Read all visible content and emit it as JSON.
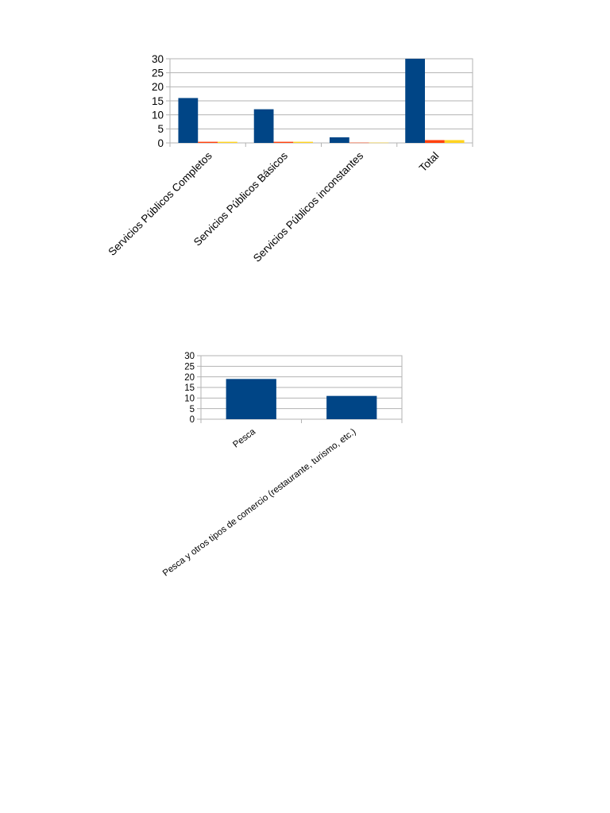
{
  "chart_data": [
    {
      "type": "bar",
      "categories": [
        "Servicios Públicos Completos",
        "Servicios Públicos Básicos",
        "Servicios Públicos inconstantes",
        "Total"
      ],
      "series": [
        {
          "values": [
            16,
            12,
            2,
            30
          ],
          "color": "#004586"
        },
        {
          "values": [
            0.4,
            0.4,
            0.1,
            1
          ],
          "color": "#ff420e"
        },
        {
          "values": [
            0.4,
            0.4,
            0.1,
            1
          ],
          "color": "#ffd320"
        }
      ],
      "yticks": [
        "0",
        "5",
        "10",
        "15",
        "20",
        "25",
        "30"
      ],
      "ylim": [
        0,
        30
      ],
      "grid": true,
      "title": "",
      "xlabel": "",
      "ylabel": ""
    },
    {
      "type": "bar",
      "categories": [
        "Pesca",
        "Pesca y otros tipos de comercio (restaurante, turismo, etc.)"
      ],
      "series": [
        {
          "values": [
            19,
            11
          ],
          "color": "#004586"
        }
      ],
      "yticks": [
        "0",
        "5",
        "10",
        "15",
        "20",
        "25",
        "30"
      ],
      "ylim": [
        0,
        30
      ],
      "grid": true,
      "title": "",
      "xlabel": "",
      "ylabel": ""
    }
  ]
}
